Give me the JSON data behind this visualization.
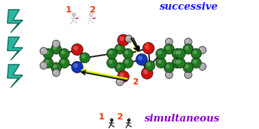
{
  "background_color": "#ffffff",
  "successive_text": "successive",
  "simultaneous_text": "simultaneous",
  "successive_color": "#1a1aff",
  "simultaneous_color": "#8800cc",
  "number1_color": "#ff3300",
  "number2_color": "#ff3300",
  "lightning_color": "#2ab5a0",
  "lightning_edge_color": "#116655",
  "molecule_green": "#1e7a1e",
  "molecule_green_dark": "#0a4a0a",
  "molecule_red": "#cc1111",
  "molecule_blue": "#1133bb",
  "molecule_gray": "#aaaaaa",
  "molecule_gray_dark": "#888888",
  "fig_width": 3.78,
  "fig_height": 1.88,
  "dpi": 100
}
